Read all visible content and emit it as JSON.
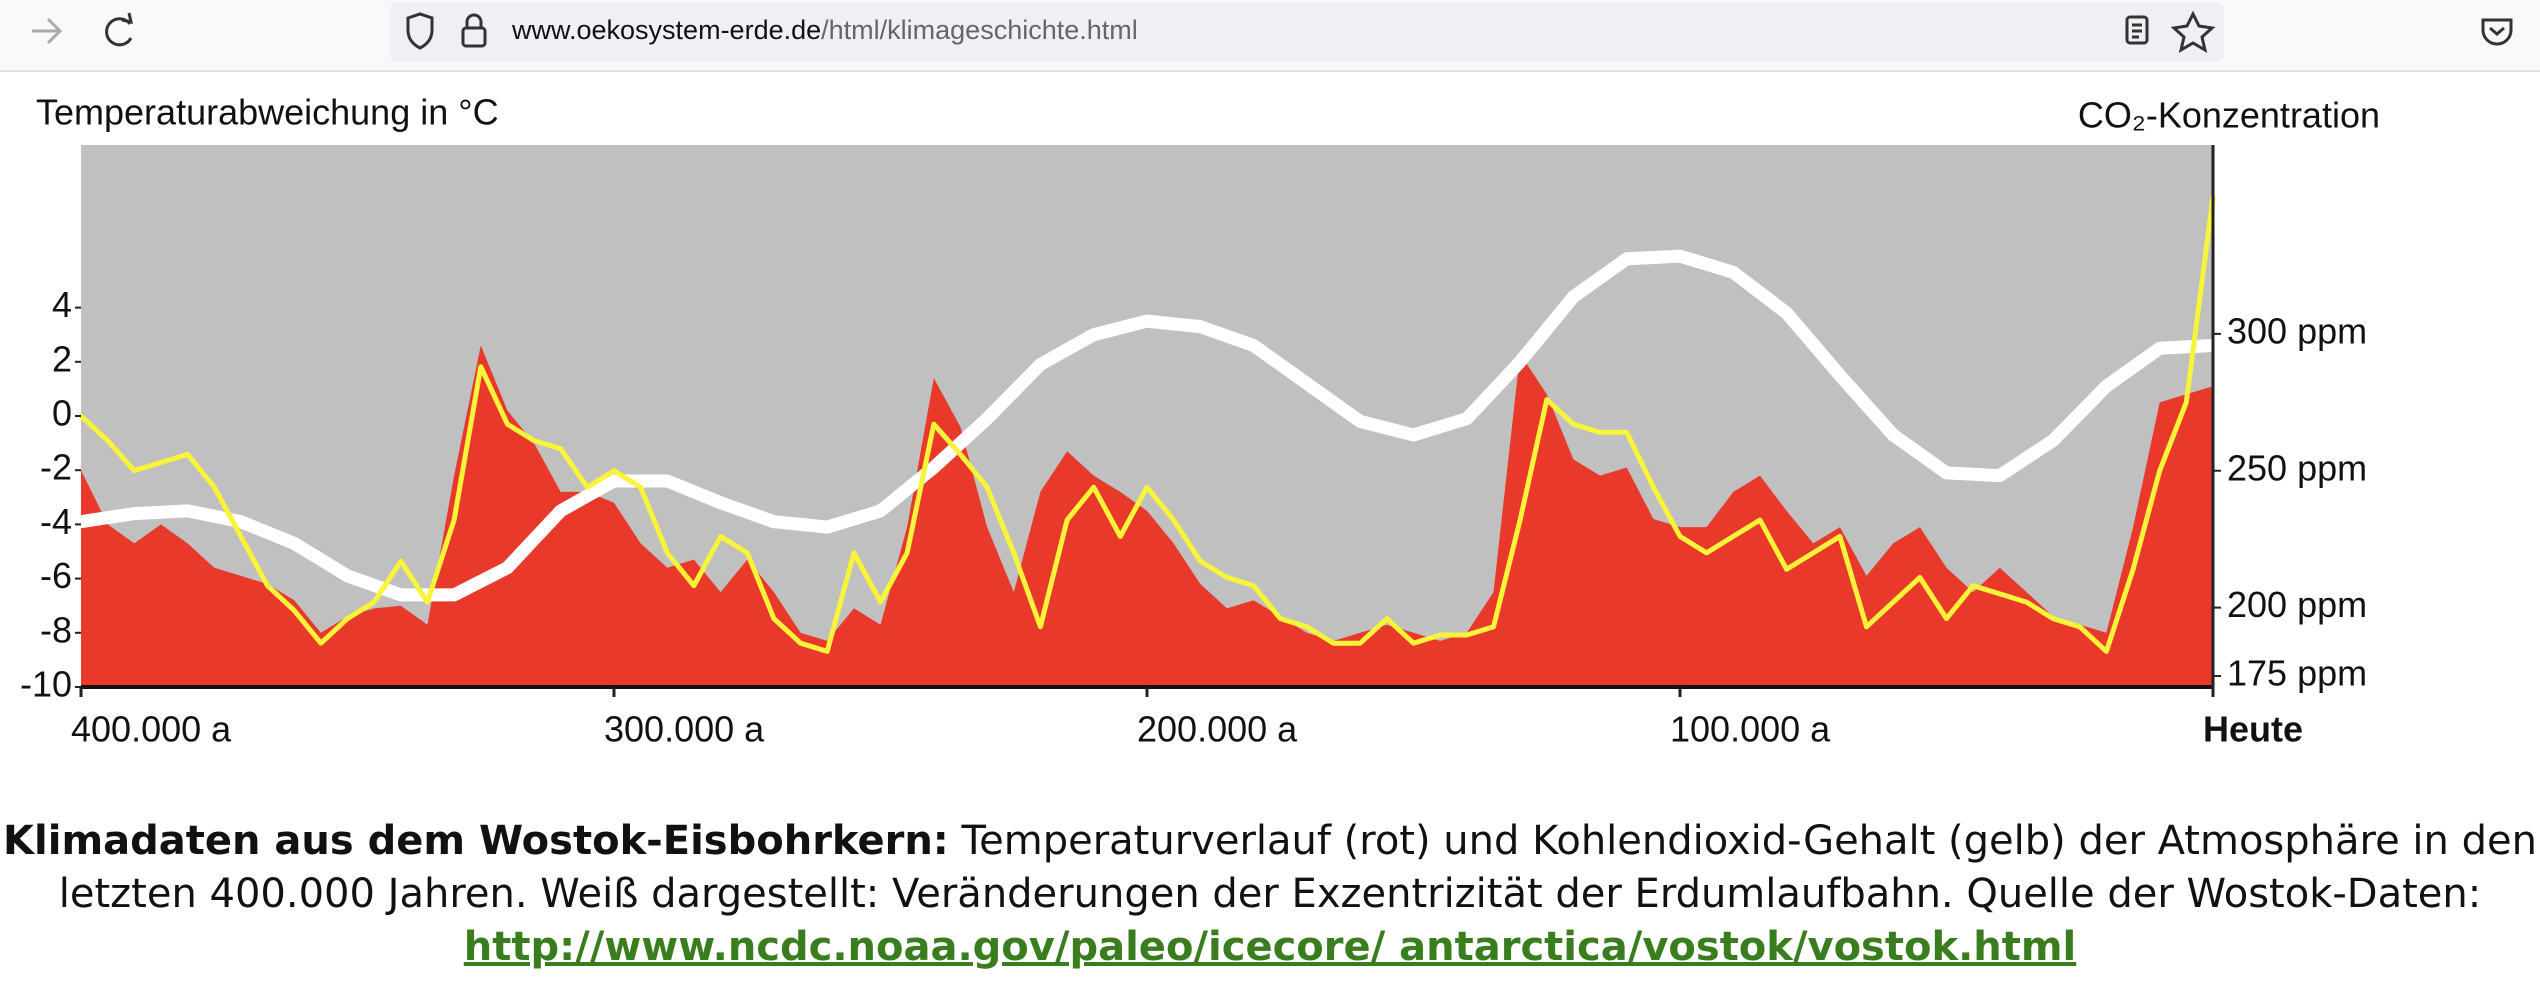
{
  "browser": {
    "url_host": "www.oekosystem-erde.de",
    "url_path": "/html/klimageschichte.html"
  },
  "chart_data": {
    "type": "line",
    "ylabel": "Temperaturabweichung in °C",
    "y2label": "CO₂-Konzentration",
    "x": [
      400000,
      395000,
      390000,
      385000,
      380000,
      375000,
      370000,
      365000,
      360000,
      355000,
      350000,
      345000,
      340000,
      335000,
      330000,
      325000,
      320000,
      315000,
      310000,
      305000,
      300000,
      295000,
      290000,
      285000,
      280000,
      275000,
      270000,
      265000,
      260000,
      255000,
      250000,
      245000,
      240000,
      235000,
      230000,
      225000,
      220000,
      215000,
      210000,
      205000,
      200000,
      195000,
      190000,
      185000,
      180000,
      175000,
      170000,
      165000,
      160000,
      155000,
      150000,
      145000,
      140000,
      135000,
      130000,
      125000,
      120000,
      115000,
      110000,
      105000,
      100000,
      95000,
      90000,
      85000,
      80000,
      75000,
      70000,
      65000,
      60000,
      55000,
      50000,
      45000,
      40000,
      35000,
      30000,
      25000,
      20000,
      15000,
      10000,
      5000,
      0
    ],
    "xlim": [
      400000,
      0
    ],
    "xticks": [
      {
        "value": 400000,
        "label": "400.000 a"
      },
      {
        "value": 300000,
        "label": "300.000 a"
      },
      {
        "value": 200000,
        "label": "200.000 a"
      },
      {
        "value": 100000,
        "label": "100.000 a"
      },
      {
        "value": 0,
        "label": "Heute"
      }
    ],
    "ylim": [
      -10,
      10
    ],
    "yticks": [
      -10,
      -8,
      -6,
      -4,
      -2,
      0,
      2,
      4
    ],
    "y2lim": [
      171,
      369
    ],
    "y2ticks": [
      {
        "value": 175,
        "label": "175 ppm"
      },
      {
        "value": 200,
        "label": "200 ppm"
      },
      {
        "value": 250,
        "label": "250 ppm"
      },
      {
        "value": 300,
        "label": "300 ppm"
      }
    ],
    "background": "#c0c0c0",
    "series": [
      {
        "type": "area",
        "color": "#e8392a",
        "values": [
          -2,
          -4,
          -4.7,
          -4,
          -4.7,
          -5.6,
          -5.9,
          -6.2,
          -6.8,
          -8,
          -7.4,
          -7.1,
          -7,
          -7.7,
          -2.2,
          2.6,
          0.2,
          -1,
          -2.8,
          -2.8,
          -3.2,
          -4.7,
          -5.6,
          -5.3,
          -6.5,
          -5.3,
          -6.5,
          -8,
          -8.3,
          -7.1,
          -7.7,
          -4.1,
          1.4,
          -0.4,
          -4.1,
          -6.5,
          -2.8,
          -1.3,
          -2.2,
          -2.8,
          -3.5,
          -4.7,
          -6.2,
          -7.1,
          -6.8,
          -7.4,
          -8,
          -8.3,
          -8,
          -7.7,
          -8,
          -8.3,
          -8,
          -6.5,
          2.3,
          0.8,
          -1.6,
          -2.2,
          -1.9,
          -3.8,
          -4.1,
          -4.1,
          -2.8,
          -2.2,
          -3.5,
          -4.7,
          -4.1,
          -5.9,
          -4.7,
          -4.1,
          -5.6,
          -6.5,
          -5.6,
          -6.5,
          -7.4,
          -7.7,
          -8,
          -4.1,
          0.5,
          0.8,
          1.1
        ]
      },
      {
        "type": "line",
        "color": "#ffffff",
        "values": [
          -3.9,
          -3.75,
          -3.6,
          -3.55,
          -3.5,
          -3.7,
          -3.9,
          -4.3,
          -4.7,
          -5.3,
          -5.9,
          -6.25,
          -6.6,
          -6.6,
          -6.6,
          -6.1,
          -5.6,
          -4.55,
          -3.5,
          -2.95,
          -2.4,
          -2.4,
          -2.4,
          -2.8,
          -3.2,
          -3.55,
          -3.9,
          -4.0,
          -4.1,
          -3.8,
          -3.5,
          -2.7,
          -1.9,
          -1.0,
          -0.1,
          0.9,
          1.9,
          2.45,
          3.0,
          3.25,
          3.5,
          3.4,
          3.3,
          2.95,
          2.6,
          1.9,
          1.2,
          0.5,
          -0.2,
          -0.45,
          -0.7,
          -0.4,
          -0.1,
          0.95,
          2.0,
          3.2,
          4.4,
          5.1,
          5.8,
          5.85,
          5.9,
          5.6,
          5.3,
          4.55,
          3.8,
          2.65,
          1.5,
          0.4,
          -0.7,
          -1.4,
          -2.1,
          -2.15,
          -2.2,
          -1.55,
          -0.9,
          0.1,
          1.1,
          1.8,
          2.5,
          2.55,
          2.6
        ]
      },
      {
        "type": "line",
        "color": "#f7f43a",
        "axis": "y2",
        "values": [
          270,
          261,
          250,
          253,
          256,
          244,
          226,
          208,
          199,
          187,
          196,
          202,
          217,
          202,
          232,
          288,
          267,
          261,
          258,
          244,
          250,
          244,
          220,
          208,
          226,
          220,
          196,
          187,
          184,
          220,
          202,
          220,
          267,
          256,
          244,
          220,
          193,
          232,
          244,
          226,
          244,
          232,
          217,
          211,
          208,
          196,
          193,
          187,
          187,
          196,
          187,
          190,
          190,
          193,
          232,
          276,
          267,
          264,
          264,
          244,
          226,
          220,
          226,
          232,
          214,
          220,
          226,
          193,
          202,
          211,
          196,
          208,
          205,
          202,
          196,
          193,
          184,
          214,
          250,
          275,
          350
        ]
      }
    ]
  },
  "caption": {
    "bold": "Klimadaten aus dem Wostok-Eisbohrkern:",
    "text": " Temperaturverlauf (rot) und Kohlendioxid-Gehalt (gelb) der Atmosphäre in den letzten 400.000 Jahren. Weiß dargestellt: Veränderungen der Exzentrizität der Erdumlaufbahn. Quelle der Wostok-Daten: ",
    "link": "http://www.ncdc.noaa.gov/paleo/icecore/ antarctica/vostok/vostok.html"
  }
}
